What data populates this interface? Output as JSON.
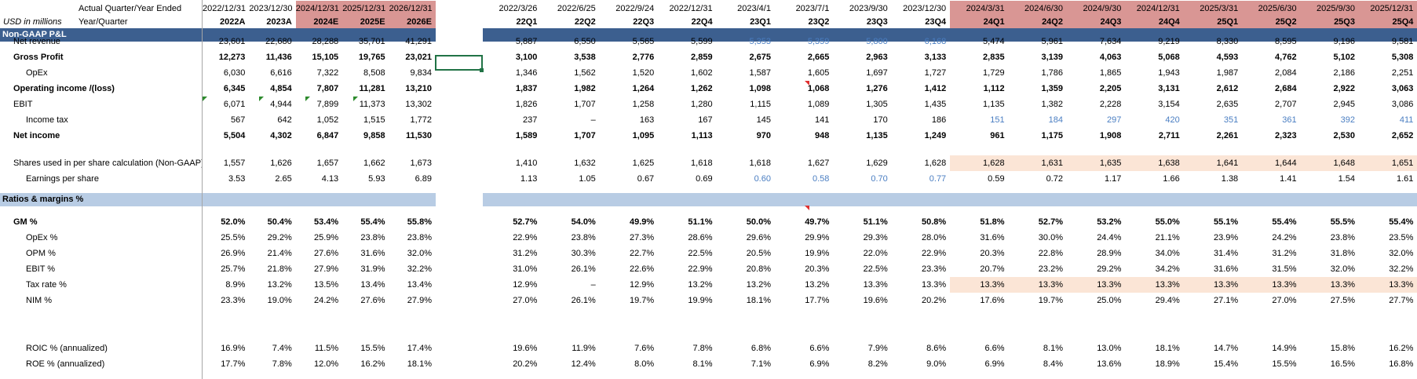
{
  "header": {
    "title_row_label": "Actual Quarter/Year Ended",
    "unit_label": "USD in millions",
    "period_label": "Year/Quarter"
  },
  "years": {
    "dates": [
      "2022/12/31",
      "2023/12/30",
      "2024/12/31",
      "2025/12/31",
      "2026/12/31"
    ],
    "codes": [
      "2022A",
      "2023A",
      "2024E",
      "2025E",
      "2026E"
    ]
  },
  "quarters": {
    "dates": [
      "2022/3/26",
      "2022/6/25",
      "2022/9/24",
      "2022/12/31",
      "2023/4/1",
      "2023/7/1",
      "2023/9/30",
      "2023/12/30",
      "2024/3/31",
      "2024/6/30",
      "2024/9/30",
      "2024/12/31",
      "2025/3/31",
      "2025/6/30",
      "2025/9/30",
      "2025/12/31"
    ],
    "codes": [
      "22Q1",
      "22Q2",
      "22Q3",
      "22Q4",
      "23Q1",
      "23Q2",
      "23Q3",
      "23Q4",
      "24Q1",
      "24Q2",
      "24Q3",
      "24Q4",
      "25Q1",
      "25Q2",
      "25Q3",
      "25Q4"
    ]
  },
  "sections": {
    "pl": "Non-GAAP P&L",
    "ratios": "Ratios & margins %"
  },
  "rows": [
    {
      "key": "net_revenue",
      "label": "Net revenue",
      "y": 52,
      "bold": false,
      "indent": 1,
      "years": [
        "23,601",
        "22,680",
        "28,288",
        "35,701",
        "41,291"
      ],
      "q": [
        "5,887",
        "6,550",
        "5,565",
        "5,599",
        "5,353",
        "5,359",
        "5,800",
        "6,168",
        "5,474",
        "5,961",
        "7,634",
        "9,219",
        "8,330",
        "8,595",
        "9,196",
        "9,581"
      ],
      "qblue": [
        4,
        5,
        6,
        7
      ]
    },
    {
      "key": "gross_profit",
      "label": "Gross Profit",
      "y": 72,
      "bold": true,
      "indent": 1,
      "years": [
        "12,273",
        "11,436",
        "15,105",
        "19,765",
        "23,021"
      ],
      "q": [
        "3,100",
        "3,538",
        "2,776",
        "2,859",
        "2,675",
        "2,665",
        "2,963",
        "3,133",
        "2,835",
        "3,139",
        "4,063",
        "5,068",
        "4,593",
        "4,762",
        "5,102",
        "5,308"
      ]
    },
    {
      "key": "opex",
      "label": "OpEx",
      "y": 92,
      "bold": false,
      "indent": 2,
      "years": [
        "6,030",
        "6,616",
        "7,322",
        "8,508",
        "9,834"
      ],
      "q": [
        "1,346",
        "1,562",
        "1,520",
        "1,602",
        "1,587",
        "1,605",
        "1,697",
        "1,727",
        "1,729",
        "1,786",
        "1,865",
        "1,943",
        "1,987",
        "2,084",
        "2,186",
        "2,251"
      ]
    },
    {
      "key": "operating_income",
      "label": "Operating income /(loss)",
      "y": 112,
      "bold": true,
      "indent": 1,
      "years": [
        "6,345",
        "4,854",
        "7,807",
        "11,281",
        "13,210"
      ],
      "q": [
        "1,837",
        "1,982",
        "1,264",
        "1,262",
        "1,098",
        "1,068",
        "1,276",
        "1,412",
        "1,112",
        "1,359",
        "2,205",
        "3,131",
        "2,612",
        "2,684",
        "2,922",
        "3,063"
      ]
    },
    {
      "key": "ebit",
      "label": "EBIT",
      "y": 132,
      "bold": false,
      "indent": 1,
      "years": [
        "6,071",
        "4,944",
        "7,899",
        "11,373",
        "13,302"
      ],
      "q": [
        "1,826",
        "1,707",
        "1,258",
        "1,280",
        "1,115",
        "1,089",
        "1,305",
        "1,435",
        "1,135",
        "1,382",
        "2,228",
        "3,154",
        "2,635",
        "2,707",
        "2,945",
        "3,086"
      ]
    },
    {
      "key": "income_tax",
      "label": "Income tax",
      "y": 152,
      "bold": false,
      "indent": 2,
      "years": [
        "567",
        "642",
        "1,052",
        "1,515",
        "1,772"
      ],
      "q": [
        "237",
        "–",
        "163",
        "167",
        "145",
        "141",
        "170",
        "186",
        "151",
        "184",
        "297",
        "420",
        "351",
        "361",
        "392",
        "411"
      ],
      "qblue": [
        8,
        9,
        10,
        11,
        12,
        13,
        14,
        15
      ]
    },
    {
      "key": "net_income",
      "label": "Net income",
      "y": 172,
      "bold": true,
      "indent": 1,
      "years": [
        "5,504",
        "4,302",
        "6,847",
        "9,858",
        "11,530"
      ],
      "q": [
        "1,589",
        "1,707",
        "1,095",
        "1,113",
        "970",
        "948",
        "1,135",
        "1,249",
        "961",
        "1,175",
        "1,908",
        "2,711",
        "2,261",
        "2,323",
        "2,530",
        "2,652"
      ]
    },
    {
      "key": "shares",
      "label": "Shares used in per share calculation (Non-GAAP)",
      "y": 207,
      "bold": false,
      "indent": 1,
      "years": [
        "1,557",
        "1,626",
        "1,657",
        "1,662",
        "1,673"
      ],
      "q": [
        "1,410",
        "1,632",
        "1,625",
        "1,618",
        "1,618",
        "1,627",
        "1,629",
        "1,628",
        "1,628",
        "1,631",
        "1,635",
        "1,638",
        "1,641",
        "1,644",
        "1,648",
        "1,651"
      ],
      "qpeach": [
        8,
        9,
        10,
        11,
        12,
        13,
        14,
        15
      ]
    },
    {
      "key": "eps",
      "label": "Earnings per share",
      "y": 227,
      "bold": false,
      "indent": 2,
      "years": [
        "3.53",
        "2.65",
        "4.13",
        "5.93",
        "6.89"
      ],
      "q": [
        "1.13",
        "1.05",
        "0.67",
        "0.69",
        "0.60",
        "0.58",
        "0.70",
        "0.77",
        "0.59",
        "0.72",
        "1.17",
        "1.66",
        "1.38",
        "1.41",
        "1.54",
        "1.61"
      ],
      "qblue": [
        4,
        5,
        6,
        7
      ]
    },
    {
      "key": "gm",
      "label": "GM %",
      "y": 282,
      "bold": true,
      "indent": 1,
      "years": [
        "52.0%",
        "50.4%",
        "53.4%",
        "55.4%",
        "55.8%"
      ],
      "q": [
        "52.7%",
        "54.0%",
        "49.9%",
        "51.1%",
        "50.0%",
        "49.7%",
        "51.1%",
        "50.8%",
        "51.8%",
        "52.7%",
        "53.2%",
        "55.0%",
        "55.1%",
        "55.4%",
        "55.5%",
        "55.4%"
      ]
    },
    {
      "key": "opex_pct",
      "label": "OpEx %",
      "y": 302,
      "bold": false,
      "indent": 2,
      "years": [
        "25.5%",
        "29.2%",
        "25.9%",
        "23.8%",
        "23.8%"
      ],
      "q": [
        "22.9%",
        "23.8%",
        "27.3%",
        "28.6%",
        "29.6%",
        "29.9%",
        "29.3%",
        "28.0%",
        "31.6%",
        "30.0%",
        "24.4%",
        "21.1%",
        "23.9%",
        "24.2%",
        "23.8%",
        "23.5%"
      ]
    },
    {
      "key": "opm",
      "label": "OPM %",
      "y": 322,
      "bold": false,
      "indent": 2,
      "years": [
        "26.9%",
        "21.4%",
        "27.6%",
        "31.6%",
        "32.0%"
      ],
      "q": [
        "31.2%",
        "30.3%",
        "22.7%",
        "22.5%",
        "20.5%",
        "19.9%",
        "22.0%",
        "22.9%",
        "20.3%",
        "22.8%",
        "28.9%",
        "34.0%",
        "31.4%",
        "31.2%",
        "31.8%",
        "32.0%"
      ]
    },
    {
      "key": "ebit_pct",
      "label": "EBIT %",
      "y": 342,
      "bold": false,
      "indent": 2,
      "years": [
        "25.7%",
        "21.8%",
        "27.9%",
        "31.9%",
        "32.2%"
      ],
      "q": [
        "31.0%",
        "26.1%",
        "22.6%",
        "22.9%",
        "20.8%",
        "20.3%",
        "22.5%",
        "23.3%",
        "20.7%",
        "23.2%",
        "29.2%",
        "34.2%",
        "31.6%",
        "31.5%",
        "32.0%",
        "32.2%"
      ]
    },
    {
      "key": "tax_rate",
      "label": "Tax rate %",
      "y": 362,
      "bold": false,
      "indent": 3,
      "years": [
        "8.9%",
        "13.2%",
        "13.5%",
        "13.4%",
        "13.4%"
      ],
      "q": [
        "12.9%",
        "–",
        "12.9%",
        "13.2%",
        "13.2%",
        "13.2%",
        "13.3%",
        "13.3%",
        "13.3%",
        "13.3%",
        "13.3%",
        "13.3%",
        "13.3%",
        "13.3%",
        "13.3%",
        "13.3%"
      ],
      "qpeach": [
        8,
        9,
        10,
        11,
        12,
        13,
        14,
        15
      ]
    },
    {
      "key": "nim",
      "label": "NIM %",
      "y": 382,
      "bold": false,
      "indent": 2,
      "years": [
        "23.3%",
        "19.0%",
        "24.2%",
        "27.6%",
        "27.9%"
      ],
      "q": [
        "27.0%",
        "26.1%",
        "19.7%",
        "19.9%",
        "18.1%",
        "17.7%",
        "19.6%",
        "20.2%",
        "17.6%",
        "19.7%",
        "25.0%",
        "29.4%",
        "27.1%",
        "27.0%",
        "27.5%",
        "27.7%"
      ]
    },
    {
      "key": "roic",
      "label": "ROIC % (annualized)",
      "y": 443,
      "bold": false,
      "indent": 2,
      "years": [
        "16.9%",
        "7.4%",
        "11.5%",
        "15.5%",
        "17.4%"
      ],
      "q": [
        "19.6%",
        "11.9%",
        "7.6%",
        "7.8%",
        "6.8%",
        "6.6%",
        "7.9%",
        "8.6%",
        "6.6%",
        "8.1%",
        "13.0%",
        "18.1%",
        "14.7%",
        "14.9%",
        "15.8%",
        "16.2%"
      ]
    },
    {
      "key": "roe",
      "label": "ROE % (annualized)",
      "y": 463,
      "bold": false,
      "indent": 2,
      "years": [
        "17.7%",
        "7.8%",
        "12.0%",
        "16.2%",
        "18.1%"
      ],
      "q": [
        "20.2%",
        "12.4%",
        "8.0%",
        "8.1%",
        "7.1%",
        "6.9%",
        "8.2%",
        "9.0%",
        "6.9%",
        "8.4%",
        "13.6%",
        "18.9%",
        "15.4%",
        "15.5%",
        "16.5%",
        "16.8%"
      ]
    }
  ],
  "colors": {
    "dark_band": "#3c5f8f",
    "light_band": "#b8cce4",
    "estimate_header": "#d99694",
    "peach": "#fbe5d6",
    "blue_text": "#4a7ec2",
    "selection": "#217346"
  }
}
